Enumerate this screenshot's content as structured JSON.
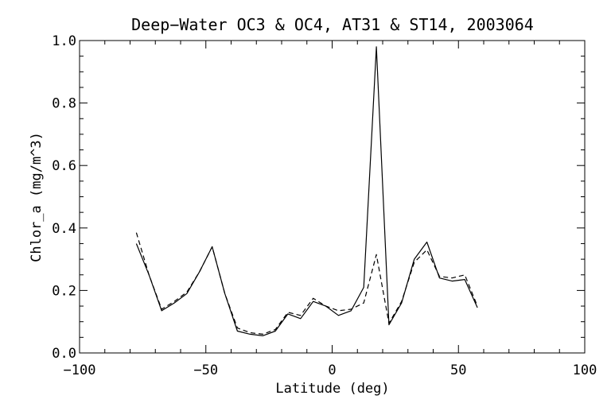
{
  "chart_data": {
    "type": "line",
    "title": "Deep−Water OC3 & OC4, AT31 & ST14, 2003064",
    "xlabel": "Latitude (deg)",
    "ylabel": "Chlor_a (mg/m^3)",
    "xlim": [
      -100,
      100
    ],
    "ylim": [
      0.0,
      1.0
    ],
    "x_ticks": [
      -100,
      -50,
      0,
      50,
      100
    ],
    "y_ticks": [
      0.0,
      0.2,
      0.4,
      0.6,
      0.8,
      1.0
    ],
    "x_tick_labels": [
      "−100",
      "−50",
      "0",
      "50",
      "100"
    ],
    "y_tick_labels": [
      "0.0",
      "0.2",
      "0.4",
      "0.6",
      "0.8",
      "1.0"
    ],
    "grid": false,
    "legend": "none",
    "series": [
      {
        "style": "solid",
        "x": [
          -77.5,
          -72.5,
          -67.5,
          -62.5,
          -57.5,
          -52.5,
          -47.5,
          -42.5,
          -37.5,
          -32.5,
          -27.5,
          -22.5,
          -17.5,
          -12.5,
          -7.5,
          -2.5,
          2.5,
          7.5,
          12.5,
          17.5,
          22.5,
          27.5,
          32.5,
          37.5,
          42.5,
          47.5,
          52.5,
          57.5
        ],
        "y": [
          0.35,
          0.25,
          0.135,
          0.16,
          0.19,
          0.26,
          0.34,
          0.19,
          0.07,
          0.06,
          0.055,
          0.07,
          0.125,
          0.11,
          0.165,
          0.15,
          0.12,
          0.135,
          0.21,
          0.98,
          0.09,
          0.16,
          0.3,
          0.355,
          0.24,
          0.23,
          0.235,
          0.145
        ]
      },
      {
        "style": "dashed",
        "x": [
          -77.5,
          -72.5,
          -67.5,
          -62.5,
          -57.5,
          -52.5,
          -47.5,
          -42.5,
          -37.5,
          -32.5,
          -27.5,
          -22.5,
          -17.5,
          -12.5,
          -7.5,
          -2.5,
          2.5,
          7.5,
          12.5,
          17.5,
          22.5,
          27.5,
          32.5,
          37.5,
          42.5,
          47.5,
          52.5,
          57.5
        ],
        "y": [
          0.385,
          0.25,
          0.14,
          0.165,
          0.195,
          0.26,
          0.34,
          0.19,
          0.08,
          0.065,
          0.06,
          0.075,
          0.13,
          0.12,
          0.175,
          0.15,
          0.135,
          0.14,
          0.16,
          0.315,
          0.095,
          0.165,
          0.29,
          0.33,
          0.245,
          0.24,
          0.25,
          0.15
        ]
      }
    ]
  }
}
